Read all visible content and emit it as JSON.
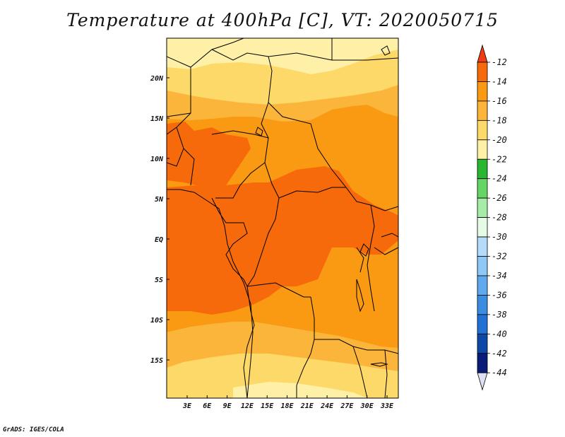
{
  "title": "Temperature at 400hPa [C], VT: 2020050715",
  "credit": "GrADS: IGES/COLA",
  "map": {
    "lat_labels": [
      "20N",
      "15N",
      "10N",
      "5N",
      "EQ",
      "5S",
      "10S",
      "15S"
    ],
    "lon_labels": [
      "3E",
      "6E",
      "9E",
      "12E",
      "15E",
      "18E",
      "21E",
      "24E",
      "27E",
      "30E",
      "33E"
    ]
  },
  "legend": {
    "labels": [
      "-12",
      "-14",
      "-16",
      "-18",
      "-20",
      "-22",
      "-24",
      "-26",
      "-28",
      "-30",
      "-32",
      "-34",
      "-36",
      "-38",
      "-40",
      "-42",
      "-44"
    ],
    "colors": [
      "#f03c14",
      "#f76a0b",
      "#fa9a12",
      "#fbb53a",
      "#fdd96a",
      "#fff0a8",
      "#2ab532",
      "#66d566",
      "#a6eca6",
      "#e6fbe6",
      "#b4dcfa",
      "#8ec8f6",
      "#5fa9ec",
      "#3c8de0",
      "#2070d6",
      "#0d48a8",
      "#0a1c78",
      "#e0e0f4"
    ]
  },
  "colors": {
    "c_m12": "#f03c14",
    "c_m14": "#f76a0b",
    "c_m16": "#fa9a12",
    "c_m18": "#fbb53a",
    "c_m20": "#fdd96a",
    "c_m22": "#fff0a8"
  }
}
